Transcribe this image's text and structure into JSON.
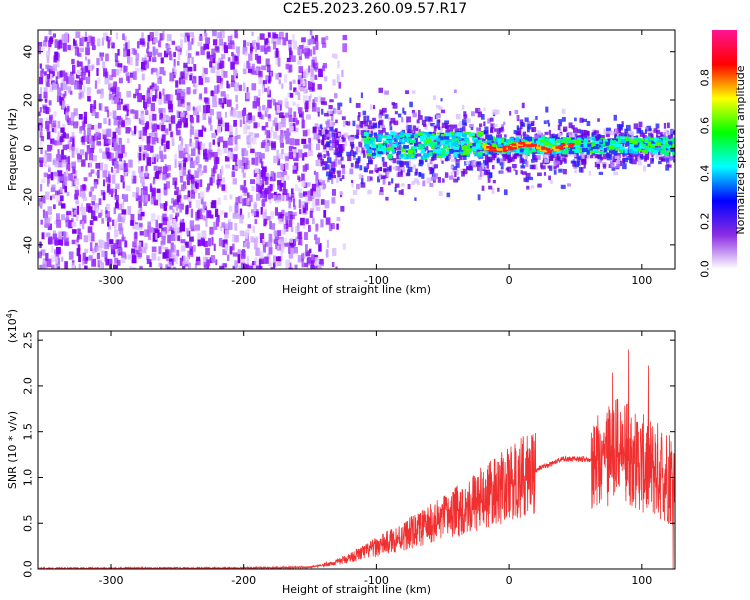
{
  "title": "C2E5.2023.260.09.57.R17",
  "chart_data": [
    {
      "type": "heatmap",
      "xlabel": "Height of straight line (km)",
      "ylabel": "Frequency (Hz)",
      "xlim": [
        -355,
        125
      ],
      "ylim": [
        -50,
        49
      ],
      "x_ticks": [
        -300,
        -200,
        -100,
        0,
        100
      ],
      "y_ticks": [
        -40,
        -20,
        0,
        20,
        40
      ],
      "colorbar": {
        "label": "Normalized spectral amplitude",
        "range": [
          0,
          1
        ],
        "ticks": [
          "0.0",
          "0.2",
          "0.4",
          "0.6",
          "0.8"
        ],
        "stops": [
          "#ffffff",
          "#8a2be2",
          "#0000ff",
          "#00ffff",
          "#00ff00",
          "#ffff00",
          "#ff0000",
          "#ff1493"
        ]
      },
      "features": {
        "noise_region_x": [
          -355,
          -145
        ],
        "signal_track_x": [
          -145,
          125
        ],
        "track_center_freq_hz": 2
      }
    },
    {
      "type": "line",
      "xlabel": "Height of straight line (km)",
      "ylabel": "SNR (10 * v/v)",
      "y_multiplier": "(x10",
      "y_multiplier_exp": "4",
      "xlim": [
        -355,
        125
      ],
      "ylim": [
        0,
        2.6
      ],
      "x_ticks": [
        -300,
        -200,
        -100,
        0,
        100
      ],
      "y_ticks": [
        "0.0",
        "0.5",
        "1.0",
        "1.5",
        "2.0",
        "2.5"
      ],
      "series_color": "#f03030",
      "profile": {
        "x": [
          -355,
          -200,
          -150,
          -130,
          -110,
          -90,
          -70,
          -50,
          -30,
          -10,
          0,
          20,
          40,
          60,
          65,
          80,
          100,
          125
        ],
        "y": [
          0.005,
          0.01,
          0.02,
          0.07,
          0.18,
          0.3,
          0.42,
          0.55,
          0.7,
          0.85,
          0.92,
          1.08,
          1.2,
          1.2,
          1.2,
          1.35,
          1.15,
          1.0
        ]
      }
    }
  ]
}
